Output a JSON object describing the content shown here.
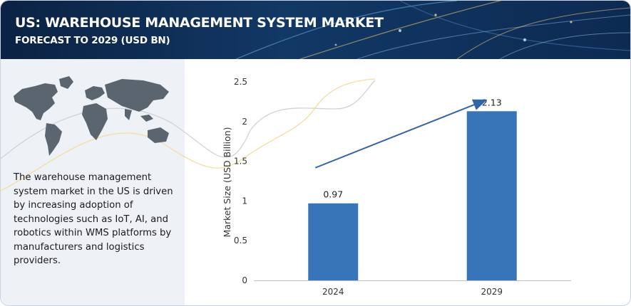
{
  "header": {
    "title": "US: WAREHOUSE MANAGEMENT SYSTEM MARKET",
    "subtitle": "FORECAST TO 2029 (USD BN)"
  },
  "description": "The warehouse management system market in the US is driven by increasing adoption of technologies such as IoT, AI, and robotics within WMS platforms by manufacturers and logistics providers.",
  "colors": {
    "banner": "#0b2243",
    "bar": "#3874b8",
    "arrow": "#2f65a3",
    "map": "#5a6570"
  },
  "chart_data": {
    "type": "bar",
    "categories": [
      "2024",
      "2029"
    ],
    "values": [
      0.97,
      2.13
    ],
    "data_labels": [
      "0.97",
      "2.13"
    ],
    "ylabel": "Market Size (USD Billion)",
    "ylim": [
      0,
      2.5
    ],
    "yticks": [
      0,
      0.5,
      1,
      1.5,
      2,
      2.5
    ],
    "ytick_labels": [
      "0",
      "0.5",
      "1",
      "1.5",
      "2",
      "2.5"
    ],
    "grid": false,
    "legend": "none",
    "annotation": "growth-arrow"
  }
}
